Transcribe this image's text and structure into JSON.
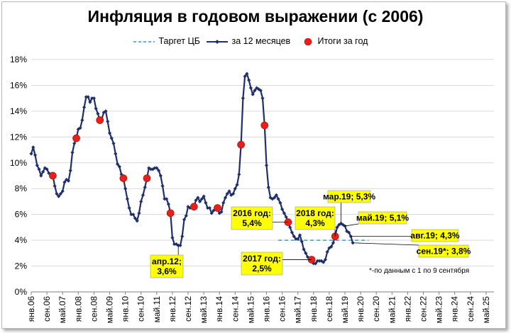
{
  "chart_data": {
    "type": "line",
    "title": "Инфляция в годовом выражении (с 2006)",
    "ylim": [
      0,
      18
    ],
    "y_ticks": [
      "0%",
      "2%",
      "4%",
      "6%",
      "8%",
      "10%",
      "12%",
      "14%",
      "16%",
      "18%"
    ],
    "y_tick_values": [
      0,
      2,
      4,
      6,
      8,
      10,
      12,
      14,
      16,
      18
    ],
    "x_tick_labels": [
      "янв.06",
      "сен.06",
      "май.07",
      "янв.08",
      "сен.08",
      "май.09",
      "янв.10",
      "сен.10",
      "май.11",
      "янв.12",
      "сен.12",
      "май.13",
      "янв.14",
      "сен.14",
      "май.15",
      "янв.16",
      "сен.16",
      "май.17",
      "янв.18",
      "сен.18",
      "май.19",
      "янв.20",
      "сен.20",
      "май.21",
      "янв.22",
      "сен.22",
      "май.23",
      "янв.24",
      "сен.24",
      "май.25"
    ],
    "x_tick_months": [
      0,
      8,
      16,
      24,
      32,
      40,
      48,
      56,
      64,
      72,
      80,
      88,
      96,
      104,
      112,
      120,
      128,
      136,
      144,
      152,
      160,
      168,
      176,
      184,
      192,
      200,
      208,
      216,
      224,
      232
    ],
    "x_range_months": [
      0,
      236
    ],
    "grid": "horizontal",
    "legend": {
      "placement": "top",
      "target_label": "Таргет ЦБ",
      "series_label": "за 12 месяцев",
      "annual_label": "Итоги за год"
    },
    "colors": {
      "series": "#1f2f6e",
      "target": "#2e9fd6",
      "annual": "#e8201a",
      "callout_fill": "#ffff00"
    },
    "target": {
      "value": 4.0,
      "from_month": 126,
      "to_month": 172
    },
    "series": [
      {
        "name": "за 12 месяцев",
        "points": [
          [
            0,
            10.7
          ],
          [
            1,
            11.2
          ],
          [
            2,
            10.6
          ],
          [
            3,
            9.8
          ],
          [
            4,
            9.5
          ],
          [
            5,
            9.0
          ],
          [
            6,
            9.3
          ],
          [
            7,
            9.6
          ],
          [
            8,
            9.5
          ],
          [
            9,
            9.2
          ],
          [
            10,
            9.0
          ],
          [
            11,
            9.0
          ],
          [
            12,
            8.2
          ],
          [
            13,
            7.6
          ],
          [
            14,
            7.4
          ],
          [
            15,
            7.6
          ],
          [
            16,
            7.8
          ],
          [
            17,
            8.5
          ],
          [
            18,
            8.7
          ],
          [
            19,
            8.6
          ],
          [
            20,
            9.4
          ],
          [
            21,
            10.8
          ],
          [
            22,
            11.5
          ],
          [
            23,
            11.9
          ],
          [
            24,
            12.6
          ],
          [
            25,
            12.7
          ],
          [
            26,
            13.3
          ],
          [
            27,
            14.3
          ],
          [
            28,
            15.1
          ],
          [
            29,
            15.1
          ],
          [
            30,
            14.7
          ],
          [
            31,
            15.0
          ],
          [
            32,
            15.0
          ],
          [
            33,
            14.2
          ],
          [
            34,
            13.8
          ],
          [
            35,
            13.3
          ],
          [
            36,
            13.4
          ],
          [
            37,
            13.9
          ],
          [
            38,
            14.0
          ],
          [
            39,
            13.2
          ],
          [
            40,
            12.3
          ],
          [
            41,
            11.9
          ],
          [
            42,
            11.5
          ],
          [
            43,
            10.7
          ],
          [
            44,
            9.9
          ],
          [
            45,
            9.7
          ],
          [
            46,
            9.1
          ],
          [
            47,
            8.8
          ],
          [
            48,
            8.0
          ],
          [
            49,
            7.2
          ],
          [
            50,
            6.5
          ],
          [
            51,
            6.0
          ],
          [
            52,
            6.0
          ],
          [
            53,
            5.7
          ],
          [
            54,
            5.5
          ],
          [
            55,
            6.1
          ],
          [
            56,
            7.0
          ],
          [
            57,
            7.5
          ],
          [
            58,
            8.1
          ],
          [
            59,
            8.8
          ],
          [
            60,
            9.6
          ],
          [
            61,
            9.5
          ],
          [
            62,
            9.5
          ],
          [
            63,
            9.6
          ],
          [
            64,
            9.6
          ],
          [
            65,
            9.4
          ],
          [
            66,
            9.0
          ],
          [
            67,
            8.2
          ],
          [
            68,
            7.2
          ],
          [
            69,
            7.2
          ],
          [
            70,
            6.8
          ],
          [
            71,
            6.1
          ],
          [
            72,
            4.2
          ],
          [
            73,
            3.7
          ],
          [
            74,
            3.7
          ],
          [
            75,
            3.6
          ],
          [
            76,
            3.6
          ],
          [
            77,
            4.3
          ],
          [
            78,
            5.6
          ],
          [
            79,
            5.9
          ],
          [
            80,
            6.6
          ],
          [
            81,
            6.5
          ],
          [
            82,
            6.5
          ],
          [
            83,
            6.6
          ],
          [
            84,
            7.1
          ],
          [
            85,
            7.3
          ],
          [
            86,
            7.0
          ],
          [
            87,
            7.2
          ],
          [
            88,
            7.4
          ],
          [
            89,
            6.9
          ],
          [
            90,
            6.5
          ],
          [
            91,
            6.5
          ],
          [
            92,
            6.1
          ],
          [
            93,
            6.3
          ],
          [
            94,
            6.5
          ],
          [
            95,
            6.5
          ],
          [
            96,
            6.1
          ],
          [
            97,
            6.2
          ],
          [
            98,
            6.9
          ],
          [
            99,
            7.3
          ],
          [
            100,
            7.6
          ],
          [
            101,
            7.8
          ],
          [
            102,
            7.5
          ],
          [
            103,
            7.6
          ],
          [
            104,
            8.0
          ],
          [
            105,
            8.3
          ],
          [
            106,
            9.1
          ],
          [
            107,
            11.4
          ],
          [
            108,
            15.0
          ],
          [
            109,
            16.7
          ],
          [
            110,
            16.9
          ],
          [
            111,
            16.4
          ],
          [
            112,
            15.8
          ],
          [
            113,
            15.3
          ],
          [
            114,
            15.6
          ],
          [
            115,
            15.8
          ],
          [
            116,
            15.7
          ],
          [
            117,
            15.6
          ],
          [
            118,
            15.0
          ],
          [
            119,
            12.9
          ],
          [
            120,
            9.8
          ],
          [
            121,
            8.1
          ],
          [
            122,
            7.3
          ],
          [
            123,
            7.2
          ],
          [
            124,
            7.3
          ],
          [
            125,
            7.5
          ],
          [
            126,
            7.2
          ],
          [
            127,
            6.9
          ],
          [
            128,
            6.4
          ],
          [
            129,
            6.1
          ],
          [
            130,
            5.8
          ],
          [
            131,
            5.4
          ],
          [
            132,
            5.0
          ],
          [
            133,
            4.6
          ],
          [
            134,
            4.3
          ],
          [
            135,
            4.1
          ],
          [
            136,
            4.1
          ],
          [
            137,
            4.4
          ],
          [
            138,
            3.9
          ],
          [
            139,
            3.3
          ],
          [
            140,
            3.0
          ],
          [
            141,
            2.7
          ],
          [
            142,
            2.5
          ],
          [
            143,
            2.5
          ],
          [
            144,
            2.2
          ],
          [
            145,
            2.2
          ],
          [
            146,
            2.4
          ],
          [
            147,
            2.4
          ],
          [
            148,
            2.4
          ],
          [
            149,
            2.3
          ],
          [
            150,
            2.5
          ],
          [
            151,
            3.1
          ],
          [
            152,
            3.4
          ],
          [
            153,
            3.5
          ],
          [
            154,
            3.8
          ],
          [
            155,
            4.3
          ],
          [
            156,
            5.0
          ],
          [
            157,
            5.2
          ],
          [
            158,
            5.3
          ],
          [
            159,
            5.2
          ],
          [
            160,
            5.1
          ],
          [
            161,
            4.7
          ],
          [
            162,
            4.6
          ],
          [
            163,
            4.3
          ],
          [
            164,
            3.8
          ]
        ]
      }
    ],
    "annual": [
      [
        11,
        9.0
      ],
      [
        23,
        11.9
      ],
      [
        35,
        13.3
      ],
      [
        47,
        8.8
      ],
      [
        59,
        8.8
      ],
      [
        71,
        6.1
      ],
      [
        83,
        6.6
      ],
      [
        95,
        6.5
      ],
      [
        107,
        11.4
      ],
      [
        119,
        12.9
      ],
      [
        131,
        5.4
      ],
      [
        143,
        2.5
      ],
      [
        155,
        4.3
      ]
    ],
    "callouts": [
      {
        "text": [
          "апр.12;",
          "3,6%"
        ],
        "month": 75,
        "value": 3.6
      },
      {
        "text": [
          "2016 год:",
          "5,4%"
        ],
        "month": 131,
        "value": 5.4
      },
      {
        "text": [
          "2017 год:",
          "2,5%"
        ],
        "month": 143,
        "value": 2.5
      },
      {
        "text": [
          "2018 год:",
          "4,3%"
        ],
        "month": 155,
        "value": 4.3
      },
      {
        "text": [
          "мар.19; 5,3%"
        ],
        "month": 158,
        "value": 5.3
      },
      {
        "text": [
          "май.19; 5,1%"
        ],
        "month": 160,
        "value": 5.1
      },
      {
        "text": [
          "авг.19; 4,3%"
        ],
        "month": 163,
        "value": 4.3
      },
      {
        "text": [
          "сен.19*; 3,8%"
        ],
        "month": 164,
        "value": 3.8
      }
    ],
    "footnote": "*-по данным с 1 по 9 сентября"
  }
}
